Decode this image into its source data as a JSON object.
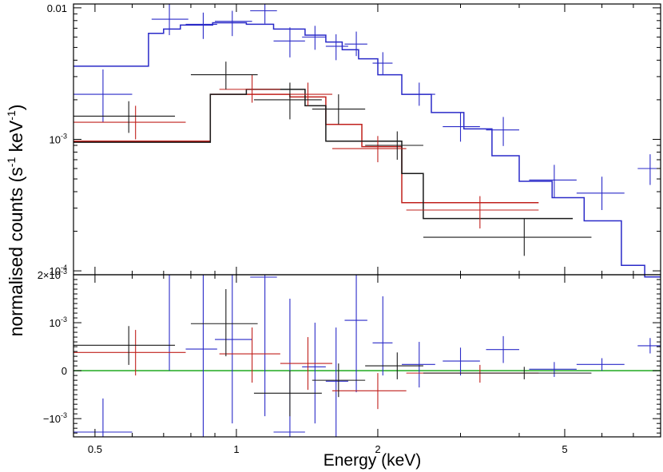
{
  "chart_data": {
    "type": "spectrum",
    "xlabel": "Energy (keV)",
    "ylabel": "normalised counts (s",
    "ylabel_sup1": "-1",
    "ylabel_mid": " keV",
    "ylabel_sup2": "-1",
    "ylabel_end": ")",
    "x_scale": "log",
    "xlim": [
      0.45,
      8.0
    ],
    "x_ticks": [
      {
        "value": 0.5,
        "label": "0.5"
      },
      {
        "value": 1,
        "label": "1"
      },
      {
        "value": 2,
        "label": "2"
      },
      {
        "value": 5,
        "label": "5"
      }
    ],
    "colors": {
      "blue": "#2a2ac8",
      "red": "#c0201c",
      "black": "#1a1a1a",
      "green": "#1ea81e"
    },
    "top_panel": {
      "y_scale": "log",
      "ylim": [
        9.34e-05,
        0.0107
      ],
      "y_ticks": [
        {
          "value": 0.01,
          "label": "0.01",
          "sup": ""
        },
        {
          "value": 0.001,
          "label": "10",
          "sup": "-3"
        },
        {
          "value": 0.0001,
          "label": "10",
          "sup": "-4"
        }
      ],
      "models": [
        {
          "name": "blue-model",
          "color": "blue",
          "edges": [
            0.45,
            0.65,
            0.7,
            0.76,
            0.89,
            1.05,
            1.2,
            1.4,
            1.55,
            1.68,
            1.82,
            2.0,
            2.25,
            2.6,
            3.05,
            3.5,
            4.0,
            4.7,
            5.5,
            6.6,
            7.4,
            8.0
          ],
          "values": [
            0.0036,
            0.0064,
            0.0069,
            0.0074,
            0.0077,
            0.0075,
            0.0069,
            0.0062,
            0.0055,
            0.0048,
            0.0041,
            0.0031,
            0.0022,
            0.0016,
            0.0012,
            0.00075,
            0.00048,
            0.00036,
            0.00024,
            0.00011,
            9e-05
          ]
        },
        {
          "name": "red-model",
          "color": "red",
          "edges": [
            0.45,
            0.8,
            0.88,
            1.05,
            1.3,
            1.55,
            1.85,
            2.25,
            4.4
          ],
          "values": [
            0.00097,
            0.00097,
            0.0022,
            0.0022,
            0.0021,
            0.0013,
            0.00088,
            0.00033
          ]
        },
        {
          "name": "black-model",
          "color": "black",
          "edges": [
            0.45,
            0.8,
            0.88,
            1.05,
            1.4,
            1.55,
            2.25,
            2.5,
            5.2
          ],
          "values": [
            0.00095,
            0.00095,
            0.0022,
            0.0024,
            0.0018,
            0.00097,
            0.00055,
            0.00025
          ]
        }
      ],
      "points": [
        {
          "series": "blue",
          "x": 0.52,
          "xlo": 0.45,
          "xhi": 0.6,
          "y": 0.0022,
          "ylo": 0.00135,
          "yhi": 0.0034
        },
        {
          "series": "blue",
          "x": 0.72,
          "xlo": 0.66,
          "xhi": 0.79,
          "y": 0.0082,
          "ylo": 0.0062,
          "yhi": 0.0107
        },
        {
          "series": "blue",
          "x": 0.85,
          "xlo": 0.78,
          "xhi": 0.91,
          "y": 0.0075,
          "ylo": 0.0058,
          "yhi": 0.0092
        },
        {
          "series": "blue",
          "x": 0.98,
          "xlo": 0.9,
          "xhi": 1.08,
          "y": 0.0079,
          "ylo": 0.0061,
          "yhi": 0.0095
        },
        {
          "series": "blue",
          "x": 1.15,
          "xlo": 1.07,
          "xhi": 1.22,
          "y": 0.0095,
          "ylo": 0.0076,
          "yhi": 0.0107
        },
        {
          "series": "blue",
          "x": 1.3,
          "xlo": 1.2,
          "xhi": 1.4,
          "y": 0.0056,
          "ylo": 0.0042,
          "yhi": 0.0071
        },
        {
          "series": "blue",
          "x": 1.47,
          "xlo": 1.38,
          "xhi": 1.55,
          "y": 0.006,
          "ylo": 0.0048,
          "yhi": 0.0073
        },
        {
          "series": "blue",
          "x": 1.63,
          "xlo": 1.55,
          "xhi": 1.73,
          "y": 0.0051,
          "ylo": 0.004,
          "yhi": 0.0063
        },
        {
          "series": "blue",
          "x": 1.8,
          "xlo": 1.7,
          "xhi": 1.9,
          "y": 0.0053,
          "ylo": 0.0043,
          "yhi": 0.0066
        },
        {
          "series": "blue",
          "x": 2.05,
          "xlo": 1.95,
          "xhi": 2.15,
          "y": 0.0038,
          "ylo": 0.0031,
          "yhi": 0.0046
        },
        {
          "series": "blue",
          "x": 2.45,
          "xlo": 2.25,
          "xhi": 2.65,
          "y": 0.0022,
          "ylo": 0.0018,
          "yhi": 0.0027
        },
        {
          "series": "blue",
          "x": 3.0,
          "xlo": 2.75,
          "xhi": 3.3,
          "y": 0.00125,
          "ylo": 0.00096,
          "yhi": 0.0016
        },
        {
          "series": "blue",
          "x": 3.7,
          "xlo": 3.4,
          "xhi": 4.0,
          "y": 0.00118,
          "ylo": 0.00089,
          "yhi": 0.00148
        },
        {
          "series": "blue",
          "x": 4.75,
          "xlo": 4.2,
          "xhi": 5.3,
          "y": 0.00049,
          "ylo": 0.00036,
          "yhi": 0.00064
        },
        {
          "series": "blue",
          "x": 6.0,
          "xlo": 5.3,
          "xhi": 6.7,
          "y": 0.00039,
          "ylo": 0.00029,
          "yhi": 0.00052
        },
        {
          "series": "blue",
          "x": 7.6,
          "xlo": 7.15,
          "xhi": 8.0,
          "y": 0.0006,
          "ylo": 0.00045,
          "yhi": 0.00077
        },
        {
          "series": "red",
          "x": 0.61,
          "xlo": 0.45,
          "xhi": 0.78,
          "y": 0.00135,
          "ylo": 0.001,
          "yhi": 0.0018
        },
        {
          "series": "red",
          "x": 1.08,
          "xlo": 0.92,
          "xhi": 1.24,
          "y": 0.0024,
          "ylo": 0.0019,
          "yhi": 0.0031
        },
        {
          "series": "red",
          "x": 1.42,
          "xlo": 1.24,
          "xhi": 1.6,
          "y": 0.0022,
          "ylo": 0.0018,
          "yhi": 0.0027
        },
        {
          "series": "red",
          "x": 2.0,
          "xlo": 1.6,
          "xhi": 2.3,
          "y": 0.00085,
          "ylo": 0.00067,
          "yhi": 0.00106
        },
        {
          "series": "red",
          "x": 3.3,
          "xlo": 2.3,
          "xhi": 4.4,
          "y": 0.00029,
          "ylo": 0.00021,
          "yhi": 0.00037
        },
        {
          "series": "black",
          "x": 0.59,
          "xlo": 0.45,
          "xhi": 0.74,
          "y": 0.0015,
          "ylo": 0.00112,
          "yhi": 0.00195
        },
        {
          "series": "black",
          "x": 0.95,
          "xlo": 0.8,
          "xhi": 1.11,
          "y": 0.0031,
          "ylo": 0.0024,
          "yhi": 0.0039
        },
        {
          "series": "black",
          "x": 1.3,
          "xlo": 1.09,
          "xhi": 1.52,
          "y": 0.002,
          "ylo": 0.00142,
          "yhi": 0.0027
        },
        {
          "series": "black",
          "x": 1.65,
          "xlo": 1.45,
          "xhi": 1.88,
          "y": 0.0017,
          "ylo": 0.0013,
          "yhi": 0.0022
        },
        {
          "series": "black",
          "x": 2.2,
          "xlo": 1.88,
          "xhi": 2.5,
          "y": 0.0009,
          "ylo": 0.0007,
          "yhi": 0.00115
        },
        {
          "series": "black",
          "x": 4.1,
          "xlo": 2.5,
          "xhi": 5.7,
          "y": 0.00018,
          "ylo": 0.00013,
          "yhi": 0.00025
        }
      ]
    },
    "bottom_panel": {
      "y_scale": "linear",
      "ylim": [
        -0.00138,
        0.002
      ],
      "y_ticks": [
        {
          "value": 0.002,
          "label": "2×10",
          "sup": "-3"
        },
        {
          "value": 0.001,
          "label": "10",
          "sup": "-3"
        },
        {
          "value": 0,
          "label": "0",
          "sup": ""
        },
        {
          "value": -0.001,
          "label": "−10",
          "sup": "-3"
        }
      ],
      "zero_line": {
        "y": 0,
        "color": "green"
      },
      "points": [
        {
          "series": "blue",
          "x": 0.52,
          "xlo": 0.45,
          "xhi": 0.6,
          "y": -0.00128,
          "ylo": -0.00138,
          "yhi": -0.00058
        },
        {
          "series": "blue",
          "x": 0.72,
          "xlo": 0.66,
          "xhi": 0.79,
          "y": 0.002,
          "ylo": 0.0,
          "yhi": 0.002
        },
        {
          "series": "blue",
          "x": 0.85,
          "xlo": 0.78,
          "xhi": 0.91,
          "y": 0.00045,
          "ylo": -0.00138,
          "yhi": 0.002
        },
        {
          "series": "blue",
          "x": 0.98,
          "xlo": 0.9,
          "xhi": 1.08,
          "y": 0.00065,
          "ylo": -0.0011,
          "yhi": 0.002
        },
        {
          "series": "blue",
          "x": 1.15,
          "xlo": 1.07,
          "xhi": 1.22,
          "y": 0.00195,
          "ylo": -0.00095,
          "yhi": 0.002
        },
        {
          "series": "blue",
          "x": 1.3,
          "xlo": 1.2,
          "xhi": 1.4,
          "y": -0.00128,
          "ylo": -0.00138,
          "yhi": 0.0015
        },
        {
          "series": "blue",
          "x": 1.47,
          "xlo": 1.38,
          "xhi": 1.55,
          "y": 8e-05,
          "ylo": -0.0011,
          "yhi": 0.001
        },
        {
          "series": "blue",
          "x": 1.63,
          "xlo": 1.55,
          "xhi": 1.73,
          "y": -0.00022,
          "ylo": -0.00138,
          "yhi": 0.0009
        },
        {
          "series": "blue",
          "x": 1.8,
          "xlo": 1.7,
          "xhi": 1.9,
          "y": 0.00105,
          "ylo": -0.00045,
          "yhi": 0.002
        },
        {
          "series": "blue",
          "x": 2.05,
          "xlo": 1.95,
          "xhi": 2.15,
          "y": 0.00058,
          "ylo": -0.0001,
          "yhi": 0.00155
        },
        {
          "series": "blue",
          "x": 2.45,
          "xlo": 2.25,
          "xhi": 2.65,
          "y": 0.00013,
          "ylo": -0.00035,
          "yhi": 0.0006
        },
        {
          "series": "blue",
          "x": 3.0,
          "xlo": 2.75,
          "xhi": 3.3,
          "y": 0.0002,
          "ylo": -0.0001,
          "yhi": 0.00048
        },
        {
          "series": "blue",
          "x": 3.7,
          "xlo": 3.4,
          "xhi": 4.0,
          "y": 0.00044,
          "ylo": 0.00016,
          "yhi": 0.00072
        },
        {
          "series": "blue",
          "x": 4.75,
          "xlo": 4.2,
          "xhi": 5.3,
          "y": 3e-05,
          "ylo": -0.00013,
          "yhi": 0.00018
        },
        {
          "series": "blue",
          "x": 6.0,
          "xlo": 5.3,
          "xhi": 6.7,
          "y": 0.00013,
          "ylo": 0.0,
          "yhi": 0.00026
        },
        {
          "series": "blue",
          "x": 7.6,
          "xlo": 7.15,
          "xhi": 8.0,
          "y": 0.00052,
          "ylo": 0.00036,
          "yhi": 0.00068
        },
        {
          "series": "red",
          "x": 0.61,
          "xlo": 0.45,
          "xhi": 0.78,
          "y": 0.00038,
          "ylo": -0.0001,
          "yhi": 0.00085
        },
        {
          "series": "red",
          "x": 1.08,
          "xlo": 0.92,
          "xhi": 1.24,
          "y": 0.00035,
          "ylo": -0.00025,
          "yhi": 0.0009
        },
        {
          "series": "red",
          "x": 1.42,
          "xlo": 1.24,
          "xhi": 1.6,
          "y": 0.00015,
          "ylo": -0.0004,
          "yhi": 0.0007
        },
        {
          "series": "red",
          "x": 2.0,
          "xlo": 1.6,
          "xhi": 2.3,
          "y": -0.00042,
          "ylo": -0.0008,
          "yhi": -5e-05
        },
        {
          "series": "red",
          "x": 3.3,
          "xlo": 2.3,
          "xhi": 4.4,
          "y": -5e-05,
          "ylo": -0.00025,
          "yhi": 0.00012
        },
        {
          "series": "black",
          "x": 0.59,
          "xlo": 0.45,
          "xhi": 0.74,
          "y": 0.00053,
          "ylo": 0.00012,
          "yhi": 0.00093
        },
        {
          "series": "black",
          "x": 0.95,
          "xlo": 0.8,
          "xhi": 1.11,
          "y": 0.00098,
          "ylo": 0.0003,
          "yhi": 0.0017
        },
        {
          "series": "black",
          "x": 1.3,
          "xlo": 1.09,
          "xhi": 1.52,
          "y": -0.00047,
          "ylo": -0.00095,
          "yhi": 0.0
        },
        {
          "series": "black",
          "x": 1.65,
          "xlo": 1.45,
          "xhi": 1.88,
          "y": -0.0002,
          "ylo": -0.00055,
          "yhi": 0.00015
        },
        {
          "series": "black",
          "x": 2.2,
          "xlo": 1.88,
          "xhi": 2.5,
          "y": 0.0001,
          "ylo": -0.00018,
          "yhi": 0.00038
        },
        {
          "series": "black",
          "x": 4.1,
          "xlo": 2.5,
          "xhi": 5.7,
          "y": -5e-05,
          "ylo": -0.00018,
          "yhi": 8e-05
        }
      ]
    }
  }
}
